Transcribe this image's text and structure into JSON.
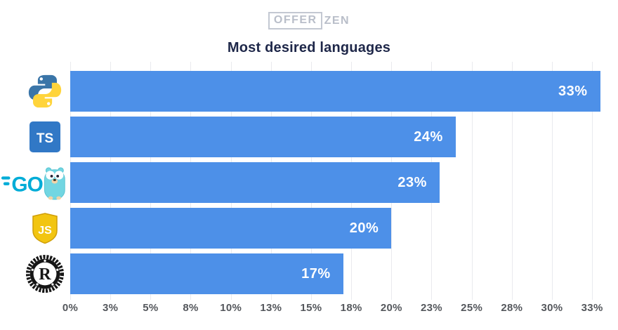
{
  "header": {
    "logo_offer": "OFFER",
    "logo_zen": "ZEN"
  },
  "chart_data": {
    "type": "bar",
    "orientation": "horizontal",
    "title": "Most desired languages",
    "categories": [
      "Python",
      "TypeScript",
      "Go",
      "JavaScript",
      "Rust"
    ],
    "values": [
      33,
      24,
      23,
      20,
      17
    ],
    "rows": [
      {
        "label": "Python",
        "value": 33,
        "value_label": "33%",
        "icon": "python-logo"
      },
      {
        "label": "TypeScript",
        "value": 24,
        "value_label": "24%",
        "icon": "typescript-logo"
      },
      {
        "label": "Go",
        "value": 23,
        "value_label": "23%",
        "icon": "go-logo"
      },
      {
        "label": "JavaScript",
        "value": 20,
        "value_label": "20%",
        "icon": "javascript-logo"
      },
      {
        "label": "Rust",
        "value": 17,
        "value_label": "17%",
        "icon": "rust-logo"
      }
    ],
    "xlabel": "",
    "ylabel": "",
    "xlim": [
      0,
      33.5
    ],
    "x_ticks": [
      {
        "value": 0,
        "label": "0%"
      },
      {
        "value": 2.5,
        "label": "3%"
      },
      {
        "value": 5,
        "label": "5%"
      },
      {
        "value": 7.5,
        "label": "8%"
      },
      {
        "value": 10,
        "label": "10%"
      },
      {
        "value": 12.5,
        "label": "13%"
      },
      {
        "value": 15,
        "label": "15%"
      },
      {
        "value": 17.5,
        "label": "18%"
      },
      {
        "value": 20,
        "label": "20%"
      },
      {
        "value": 22.5,
        "label": "23%"
      },
      {
        "value": 25,
        "label": "25%"
      },
      {
        "value": 27.5,
        "label": "28%"
      },
      {
        "value": 30,
        "label": "30%"
      },
      {
        "value": 32.5,
        "label": "33%"
      }
    ],
    "grid": "vertical",
    "legend": "none",
    "colors": {
      "bar": "#4d90e8",
      "grid": "#e9eaee",
      "axis_text": "#54575c",
      "title_text": "#1e2749",
      "value_text": "#ffffff",
      "logo_text": "#b9bec9"
    }
  }
}
